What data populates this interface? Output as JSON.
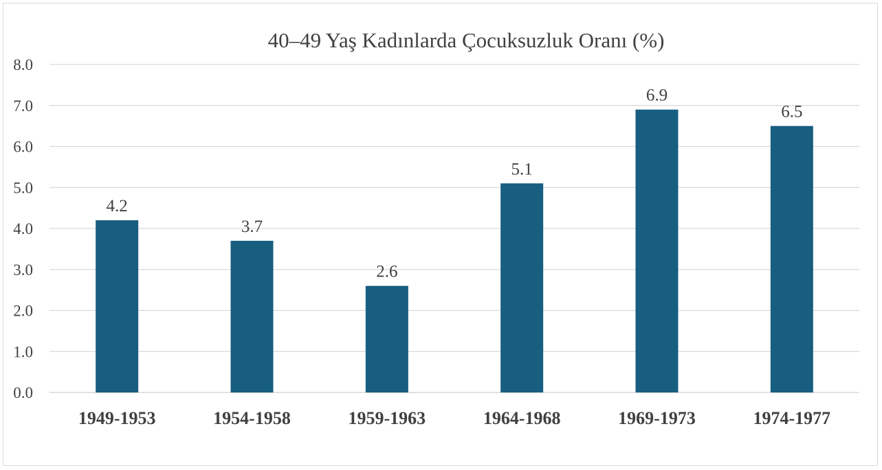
{
  "chart_data": {
    "type": "bar",
    "title": "40–49 Yaş Kadınlarda Çocuksuzluk Oranı (%)",
    "xlabel": "",
    "ylabel": "",
    "categories": [
      "1949-1953",
      "1954-1958",
      "1959-1963",
      "1964-1968",
      "1969-1973",
      "1974-1977"
    ],
    "values": [
      4.2,
      3.7,
      2.6,
      5.1,
      6.9,
      6.5
    ],
    "value_labels": [
      "4.2",
      "3.7",
      "2.6",
      "5.1",
      "6.9",
      "6.5"
    ],
    "yticks": [
      "0.0",
      "1.0",
      "2.0",
      "3.0",
      "4.0",
      "5.0",
      "6.0",
      "7.0",
      "8.0"
    ],
    "ylim": [
      0,
      8
    ],
    "grid": true,
    "legend": "none",
    "bar_color": "#175e80",
    "gridline_color": "#d9d9d9"
  }
}
